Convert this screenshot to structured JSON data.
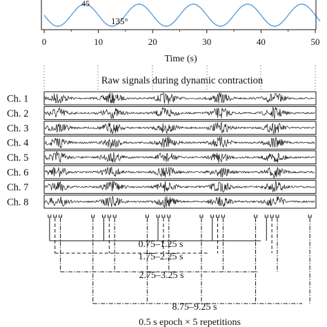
{
  "chart_data": [
    {
      "type": "line",
      "title": "",
      "xlabel": "Time (s)",
      "ylabel": "",
      "xlim": [
        -0.4,
        51.5
      ],
      "xticks": [
        0,
        10,
        20,
        30,
        40,
        50
      ],
      "annotations": [
        {
          "text": "135°",
          "x": 13,
          "y": 135
        },
        {
          "text": "45",
          "x": 7.5,
          "y": 55
        }
      ],
      "series": [
        {
          "kind": "sinusoid",
          "period_s": 10,
          "min_deg": 45,
          "max_deg": 135,
          "x": [
            0,
            2.5,
            5,
            7.5,
            10,
            12.5,
            15,
            17.5,
            20,
            22.5,
            25,
            27.5,
            30,
            32.5,
            35,
            37.5,
            40,
            42.5,
            45,
            47.5,
            50,
            51
          ],
          "y": [
            90,
            45,
            90,
            135,
            90,
            45,
            90,
            135,
            90,
            45,
            90,
            135,
            90,
            45,
            90,
            135,
            90,
            45,
            90,
            135,
            90,
            81
          ]
        }
      ],
      "color": "#5b9bd5"
    },
    {
      "type": "line",
      "title": "Raw signals during dynamic contraction",
      "channels": [
        "Ch. 1",
        "Ch. 2",
        "Ch. 3",
        "Ch. 4",
        "Ch. 5",
        "Ch. 6",
        "Ch. 7",
        "Ch. 8"
      ],
      "burst_centers_s": [
        2.5,
        12.5,
        22.5,
        32.5,
        42.5
      ],
      "epochs": [
        {
          "label": "0.75–1.25 s",
          "start_s": 0.75,
          "end_s": 1.25,
          "style": "solid"
        },
        {
          "label": "1.75–2.25 s",
          "start_s": 1.75,
          "end_s": 2.25,
          "style": "dashed"
        },
        {
          "label": "2.75–3.25 s",
          "start_s": 2.75,
          "end_s": 3.25,
          "style": "dash-dot"
        },
        {
          "label": "8.75–9.25 s",
          "start_s": 8.75,
          "end_s": 9.25,
          "style": "dash-dot"
        }
      ],
      "epoch_note": "0.5 s epoch × 5 repetitions",
      "color": "#111111"
    }
  ]
}
